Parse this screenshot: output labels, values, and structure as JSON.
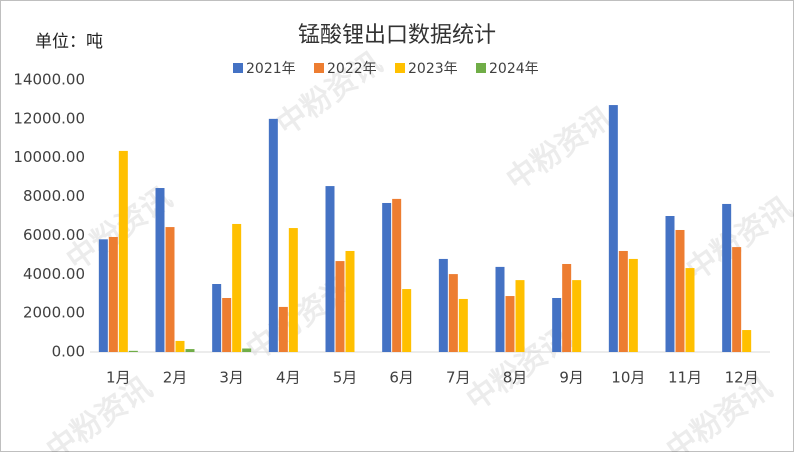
{
  "chart_data": {
    "type": "bar",
    "title": "锰酸锂出口数据统计",
    "unit_label": "单位：吨",
    "watermark": "中粉资讯",
    "categories": [
      "1月",
      "2月",
      "3月",
      "4月",
      "5月",
      "6月",
      "7月",
      "8月",
      "9月",
      "10月",
      "11月",
      "12月"
    ],
    "series": [
      {
        "name": "2021年",
        "color": "#4472c4",
        "values": [
          5800,
          8440,
          3500,
          12000,
          8540,
          7670,
          4790,
          4380,
          2780,
          12710,
          7000,
          7620
        ]
      },
      {
        "name": "2022年",
        "color": "#ed7d31",
        "values": [
          5920,
          6430,
          2780,
          2320,
          4680,
          7880,
          4010,
          2880,
          4530,
          5200,
          6280,
          5400
        ]
      },
      {
        "name": "2023年",
        "color": "#ffc000",
        "values": [
          10350,
          570,
          6590,
          6380,
          5200,
          3240,
          2730,
          3700,
          3700,
          4790,
          4320,
          1130
        ]
      },
      {
        "name": "2024年",
        "color": "#70ad47",
        "values": [
          60,
          150,
          180,
          null,
          null,
          null,
          null,
          null,
          null,
          null,
          null,
          null
        ]
      }
    ],
    "ylim": [
      0,
      14000
    ],
    "yticks": [
      {
        "value": 0,
        "label": "0.00"
      },
      {
        "value": 2000,
        "label": "2000.00"
      },
      {
        "value": 4000,
        "label": "4000.00"
      },
      {
        "value": 6000,
        "label": "6000.00"
      },
      {
        "value": 8000,
        "label": "8000.00"
      },
      {
        "value": 10000,
        "label": "10000.00"
      },
      {
        "value": 12000,
        "label": "12000.00"
      },
      {
        "value": 14000,
        "label": "14000.00"
      }
    ],
    "legend": "top"
  }
}
